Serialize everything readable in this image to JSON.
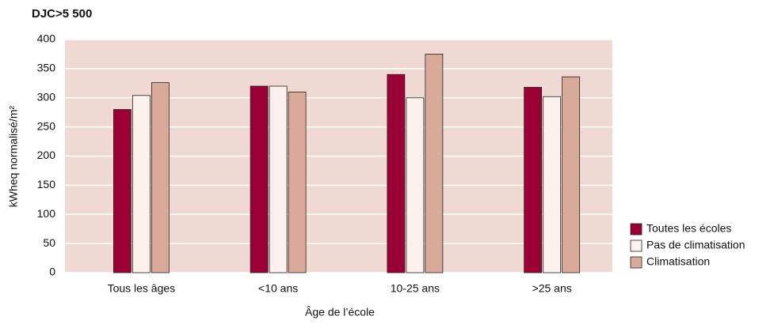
{
  "chart_data": {
    "type": "bar",
    "title": "DJC>5 500",
    "xlabel": "Âge de l’école",
    "ylabel": "kWheq normalisé/m²",
    "categories": [
      "Tous les âges",
      "<10 ans",
      "10-25 ans",
      ">25 ans"
    ],
    "series": [
      {
        "name": "Toutes les écoles",
        "color": "#9b0034",
        "values": [
          280,
          320,
          340,
          318
        ]
      },
      {
        "name": "Pas de climatisation",
        "color": "#fdf1ee",
        "values": [
          304,
          320,
          300,
          302
        ]
      },
      {
        "name": "Climatisation",
        "color": "#d9a999",
        "values": [
          326,
          310,
          375,
          336
        ]
      }
    ],
    "ylim": [
      0,
      400
    ],
    "yticks": [
      0,
      50,
      100,
      150,
      200,
      250,
      300,
      350,
      400
    ],
    "grid": true,
    "legend": "lower right"
  }
}
